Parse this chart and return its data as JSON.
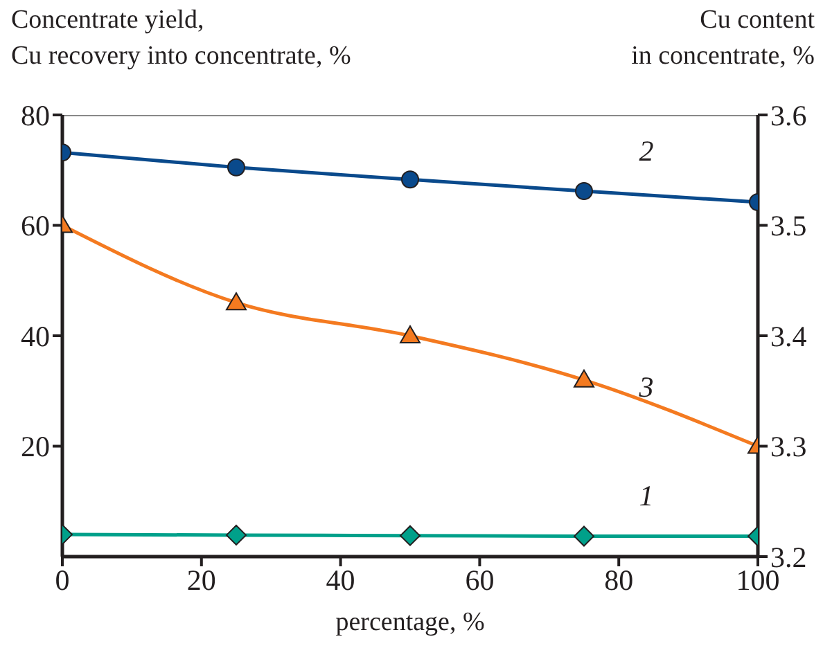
{
  "chart_data": {
    "type": "line",
    "xlabel": "percentage, %",
    "ylabel": "Concentrate yield,\nCu recovery into concentrate, %",
    "y2label": "Cu content\nin concentrate, %",
    "x": [
      0,
      25,
      50,
      75,
      100
    ],
    "series": [
      {
        "name": "1",
        "color": "#00a08a",
        "values": [
          4.0,
          3.9,
          3.8,
          3.7,
          3.7
        ],
        "marker": "diamond"
      },
      {
        "name": "2",
        "color": "#0a4a8c",
        "values": [
          73.2,
          70.5,
          68.3,
          66.2,
          64.2
        ],
        "marker": "circle"
      },
      {
        "name": "3",
        "color": "#f47a20",
        "values": [
          3.5,
          3.43,
          3.4,
          3.36,
          3.3
        ],
        "marker": "triangle",
        "axis": "y2"
      }
    ],
    "xlim": [
      0,
      100
    ],
    "xticks": [
      0,
      20,
      40,
      60,
      80,
      100
    ],
    "ylim": [
      0,
      80
    ],
    "yticks": [
      20,
      40,
      60,
      80
    ],
    "y2lim": [
      3.2,
      3.6
    ],
    "y2ticks": [
      3.2,
      3.3,
      3.4,
      3.5,
      3.6
    ],
    "grid": false,
    "legend": false
  }
}
